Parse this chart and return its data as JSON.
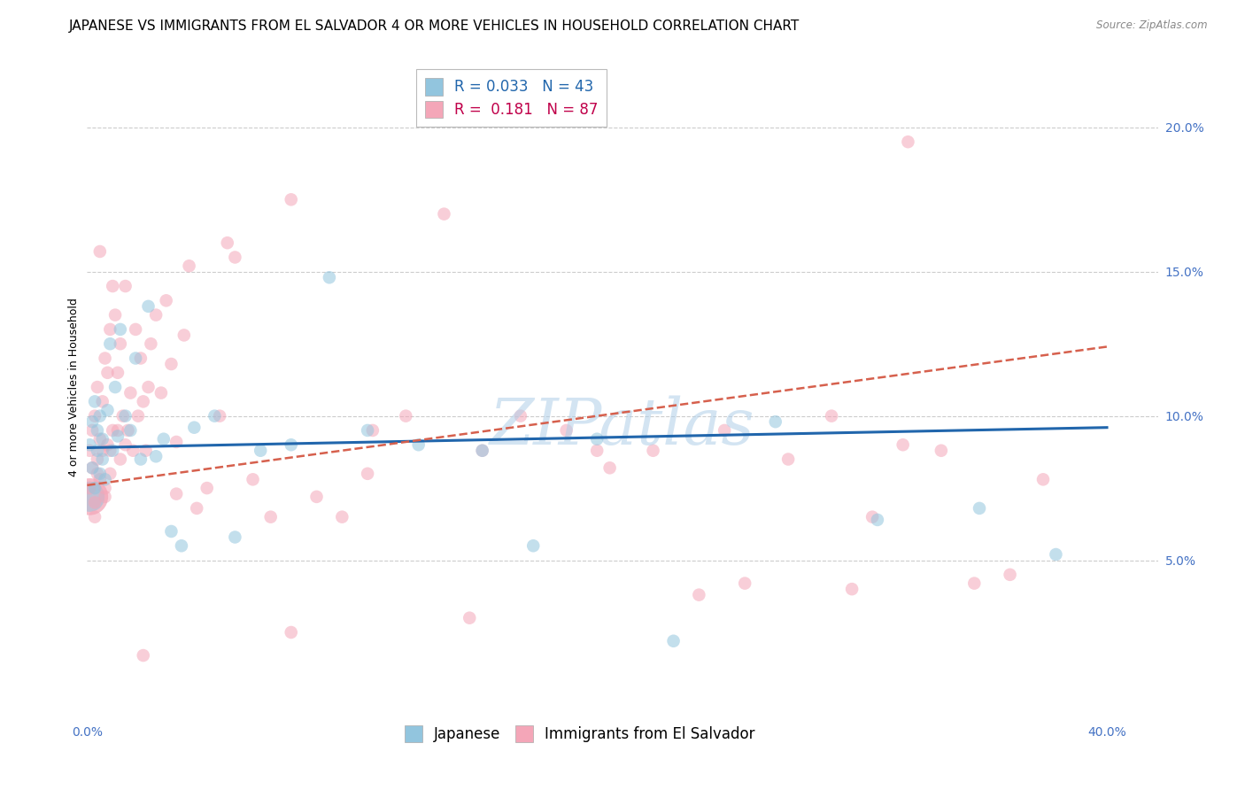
{
  "title": "JAPANESE VS IMMIGRANTS FROM EL SALVADOR 4 OR MORE VEHICLES IN HOUSEHOLD CORRELATION CHART",
  "source": "Source: ZipAtlas.com",
  "ylabel": "4 or more Vehicles in Household",
  "xlim": [
    0.0,
    0.42
  ],
  "ylim": [
    -0.005,
    0.225
  ],
  "blue_color": "#92c5de",
  "pink_color": "#f4a6b8",
  "blue_line_color": "#2166ac",
  "pink_line_color": "#d6604d",
  "tick_color": "#4472c4",
  "grid_color": "#cccccc",
  "R_japanese": 0.033,
  "N_japanese": 43,
  "R_salvador": 0.181,
  "N_salvador": 87,
  "background_color": "#ffffff",
  "title_fontsize": 11,
  "axis_label_fontsize": 9,
  "tick_fontsize": 10,
  "legend_fontsize": 12,
  "marker_size": 110,
  "alpha": 0.55,
  "jap_line_start_y": 0.089,
  "jap_line_end_y": 0.096,
  "sal_line_start_y": 0.076,
  "sal_line_end_y": 0.124,
  "watermark": "ZIPatlas",
  "watermark_color": "#b0cfe8",
  "legend_labels": [
    "Japanese",
    "Immigrants from El Salvador"
  ],
  "japanese_x": [
    0.001,
    0.002,
    0.002,
    0.003,
    0.003,
    0.004,
    0.004,
    0.005,
    0.005,
    0.006,
    0.006,
    0.007,
    0.008,
    0.009,
    0.01,
    0.011,
    0.012,
    0.013,
    0.015,
    0.017,
    0.019,
    0.021,
    0.024,
    0.027,
    0.03,
    0.033,
    0.037,
    0.042,
    0.05,
    0.058,
    0.068,
    0.08,
    0.095,
    0.11,
    0.13,
    0.155,
    0.175,
    0.2,
    0.23,
    0.27,
    0.31,
    0.35,
    0.38
  ],
  "japanese_y": [
    0.09,
    0.082,
    0.098,
    0.075,
    0.105,
    0.088,
    0.095,
    0.08,
    0.1,
    0.085,
    0.092,
    0.078,
    0.102,
    0.125,
    0.088,
    0.11,
    0.093,
    0.13,
    0.1,
    0.095,
    0.12,
    0.085,
    0.138,
    0.086,
    0.092,
    0.06,
    0.055,
    0.096,
    0.1,
    0.058,
    0.088,
    0.09,
    0.148,
    0.095,
    0.09,
    0.088,
    0.055,
    0.092,
    0.022,
    0.098,
    0.064,
    0.068,
    0.052
  ],
  "salvador_x": [
    0.001,
    0.001,
    0.002,
    0.002,
    0.003,
    0.003,
    0.004,
    0.004,
    0.005,
    0.005,
    0.006,
    0.006,
    0.007,
    0.007,
    0.008,
    0.008,
    0.009,
    0.009,
    0.01,
    0.01,
    0.011,
    0.012,
    0.013,
    0.013,
    0.014,
    0.015,
    0.016,
    0.017,
    0.018,
    0.019,
    0.02,
    0.021,
    0.022,
    0.023,
    0.024,
    0.025,
    0.027,
    0.029,
    0.031,
    0.033,
    0.035,
    0.038,
    0.04,
    0.043,
    0.047,
    0.052,
    0.058,
    0.065,
    0.072,
    0.08,
    0.09,
    0.1,
    0.112,
    0.125,
    0.14,
    0.155,
    0.17,
    0.188,
    0.205,
    0.222,
    0.24,
    0.258,
    0.275,
    0.292,
    0.308,
    0.322,
    0.335,
    0.348,
    0.362,
    0.375,
    0.2,
    0.15,
    0.11,
    0.08,
    0.055,
    0.035,
    0.022,
    0.015,
    0.012,
    0.009,
    0.007,
    0.005,
    0.004,
    0.003,
    0.25,
    0.3,
    0.32
  ],
  "salvador_y": [
    0.088,
    0.075,
    0.095,
    0.082,
    0.1,
    0.07,
    0.11,
    0.085,
    0.092,
    0.078,
    0.105,
    0.088,
    0.12,
    0.072,
    0.115,
    0.09,
    0.13,
    0.08,
    0.145,
    0.095,
    0.135,
    0.115,
    0.085,
    0.125,
    0.1,
    0.145,
    0.095,
    0.108,
    0.088,
    0.13,
    0.1,
    0.12,
    0.105,
    0.088,
    0.11,
    0.125,
    0.135,
    0.108,
    0.14,
    0.118,
    0.091,
    0.128,
    0.152,
    0.068,
    0.075,
    0.1,
    0.155,
    0.078,
    0.065,
    0.175,
    0.072,
    0.065,
    0.095,
    0.1,
    0.17,
    0.088,
    0.1,
    0.095,
    0.082,
    0.088,
    0.038,
    0.042,
    0.085,
    0.1,
    0.065,
    0.195,
    0.088,
    0.042,
    0.045,
    0.078,
    0.088,
    0.03,
    0.08,
    0.025,
    0.16,
    0.073,
    0.017,
    0.09,
    0.095,
    0.088,
    0.075,
    0.157,
    0.08,
    0.065,
    0.095,
    0.04,
    0.09
  ]
}
